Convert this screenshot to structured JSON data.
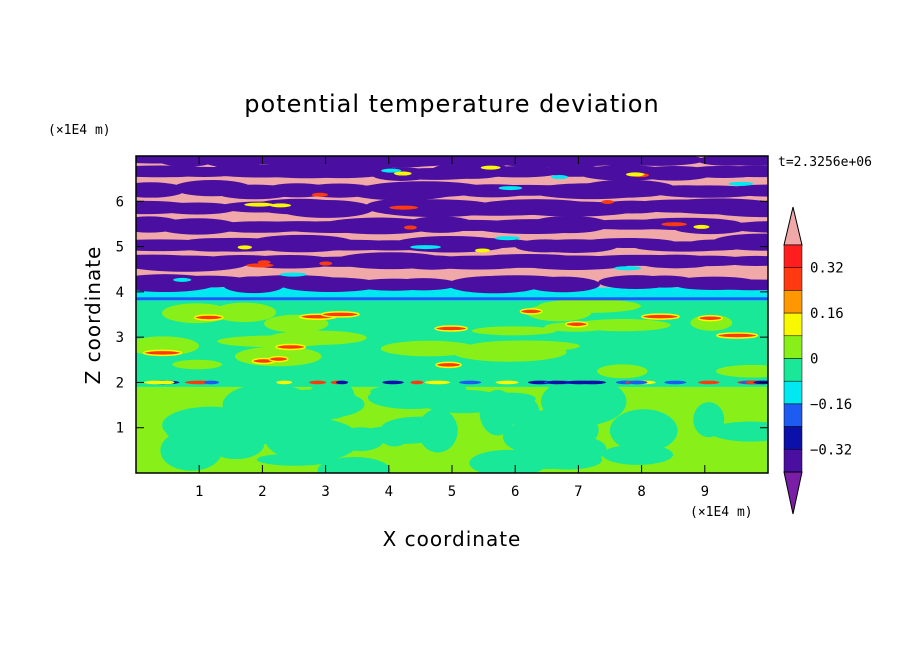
{
  "chart_data": {
    "type": "heatmap",
    "title": "potential temperature deviation",
    "xlabel": "X coordinate",
    "ylabel": "Z coordinate",
    "x_unit": "(×1E4 m)",
    "y_unit": "(×1E4 m)",
    "time_label": "t=2.3256e+06",
    "xlim": [
      0,
      10
    ],
    "ylim": [
      0,
      7
    ],
    "x_ticks": [
      1,
      2,
      3,
      4,
      5,
      6,
      7,
      8,
      9
    ],
    "y_ticks": [
      1,
      2,
      3,
      4,
      5,
      6
    ],
    "colorbar": {
      "levels": [
        -0.4,
        -0.32,
        -0.24,
        -0.16,
        -0.08,
        0,
        0.08,
        0.16,
        0.24,
        0.32,
        0.4
      ],
      "tick_labels": [
        "0.32",
        "0.16",
        "0",
        "−0.16",
        "−0.32"
      ],
      "tick_values": [
        0.32,
        0.16,
        0,
        -0.16,
        -0.32
      ],
      "colors": [
        "#7a1ea8",
        "#4a0fa0",
        "#0a10a8",
        "#1e5bf0",
        "#00e8f0",
        "#18e898",
        "#88f018",
        "#f8f800",
        "#ff9800",
        "#ff3a10",
        "#ff1e1e",
        "#f0a8a8"
      ]
    },
    "regions": [
      {
        "z_range": [
          0,
          1.9
        ],
        "description": "mixed green and light green bands"
      },
      {
        "z_range": [
          1.9,
          2.1
        ],
        "description": "thin mixed line near z=2"
      },
      {
        "z_range": [
          2.1,
          3.8
        ],
        "description": "green layer with scattered red/yellow patches"
      },
      {
        "z_range": [
          3.8,
          4.1
        ],
        "description": "cyan/blue band"
      },
      {
        "z_range": [
          4.1,
          7.0
        ],
        "description": "alternating purple and pink bands"
      }
    ]
  }
}
